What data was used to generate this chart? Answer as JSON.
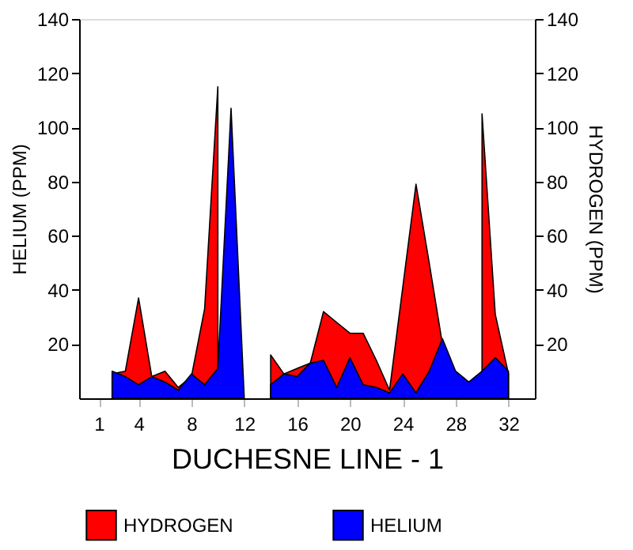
{
  "chart_data": {
    "type": "area",
    "xlabel": "DUCHESNE LINE - 1",
    "ylabel": "HELIUM (PPM)",
    "y2label": "HYDROGEN (PPM)",
    "x": [
      2,
      3,
      4,
      5,
      6,
      7,
      8,
      9,
      10,
      11,
      12,
      13,
      14,
      15,
      16,
      17,
      18,
      19,
      20,
      21,
      22,
      23,
      24,
      25,
      26,
      27,
      28,
      29,
      30,
      31,
      32
    ],
    "series": [
      {
        "name": "HYDROGEN",
        "color": "#ff0000",
        "values": [
          9,
          10,
          37,
          8,
          10,
          4,
          8,
          33,
          115,
          null,
          null,
          null,
          16,
          9,
          11,
          13,
          32,
          28,
          24,
          24,
          14,
          3,
          41,
          79,
          50,
          20,
          9,
          null,
          105,
          31,
          9
        ]
      },
      {
        "name": "HELIUM",
        "color": "#0000ff",
        "values": [
          10,
          8,
          5,
          8,
          6,
          3,
          9,
          5,
          11,
          107,
          0,
          null,
          5,
          9,
          8,
          13,
          14,
          4,
          15,
          5,
          4,
          2,
          9,
          2,
          10,
          22,
          10,
          6,
          10,
          15,
          10
        ]
      }
    ],
    "xlim": [
      -0.5,
      34
    ],
    "xticks": [
      1,
      4,
      8,
      12,
      16,
      20,
      24,
      28,
      32
    ],
    "ylim": [
      0,
      140
    ],
    "yticks": [
      20,
      40,
      60,
      80,
      100,
      120,
      140
    ],
    "y2lim": [
      0,
      140
    ],
    "y2ticks": [
      20,
      40,
      60,
      80,
      100,
      120,
      140
    ],
    "grid": false,
    "legend": "bottom"
  }
}
